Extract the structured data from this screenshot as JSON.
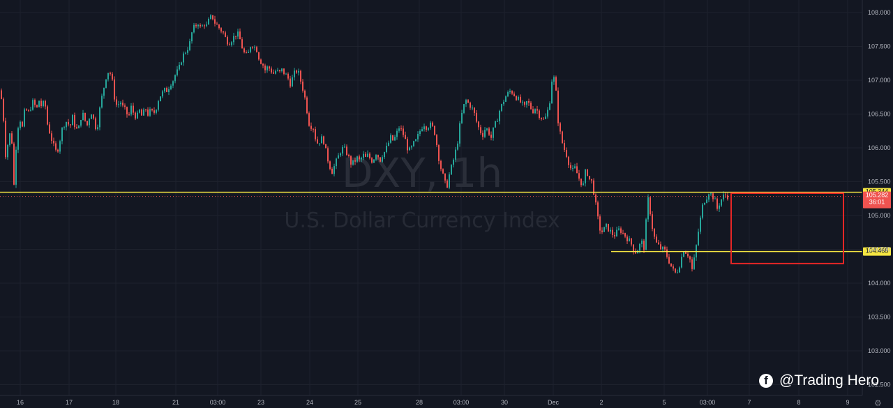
{
  "chart_data": {
    "type": "candlestick",
    "symbol": "DXY, 1h",
    "description": "U.S. Dollar Currency Index",
    "ylim": [
      102.75,
      108.2
    ],
    "y_ticks": [
      "108.000",
      "107.500",
      "107.000",
      "106.500",
      "106.000",
      "105.500",
      "105.000",
      "104.500",
      "104.000",
      "103.500",
      "103.000",
      "102.500"
    ],
    "x_ticks": [
      "16",
      "17",
      "18",
      "21",
      "03:00",
      "23",
      "24",
      "25",
      "28",
      "03:00",
      "30",
      "Dec",
      "2",
      "5",
      "03:00",
      "7",
      "8",
      "9"
    ],
    "close_path": [
      [
        0,
        106.85
      ],
      [
        4,
        106.6
      ],
      [
        8,
        105.9
      ],
      [
        12,
        106.1
      ],
      [
        16,
        106.3
      ],
      [
        20,
        105.45
      ],
      [
        24,
        106.2
      ],
      [
        28,
        106.45
      ],
      [
        32,
        106.3
      ],
      [
        36,
        106.6
      ],
      [
        40,
        106.5
      ],
      [
        44,
        106.6
      ],
      [
        48,
        106.7
      ],
      [
        52,
        106.55
      ],
      [
        56,
        106.7
      ],
      [
        60,
        106.6
      ],
      [
        64,
        106.7
      ],
      [
        68,
        106.35
      ],
      [
        72,
        106.2
      ],
      [
        76,
        106.05
      ],
      [
        80,
        105.95
      ],
      [
        84,
        106.0
      ],
      [
        88,
        106.25
      ],
      [
        92,
        106.35
      ],
      [
        96,
        106.4
      ],
      [
        100,
        106.3
      ],
      [
        104,
        106.45
      ],
      [
        108,
        106.3
      ],
      [
        112,
        106.25
      ],
      [
        116,
        106.45
      ],
      [
        120,
        106.5
      ],
      [
        124,
        106.3
      ],
      [
        128,
        106.45
      ],
      [
        132,
        106.55
      ],
      [
        136,
        106.3
      ],
      [
        140,
        106.35
      ],
      [
        144,
        106.65
      ],
      [
        148,
        106.85
      ],
      [
        152,
        107.05
      ],
      [
        156,
        107.15
      ],
      [
        160,
        107.05
      ],
      [
        164,
        106.75
      ],
      [
        168,
        106.6
      ],
      [
        172,
        106.7
      ],
      [
        176,
        106.6
      ],
      [
        180,
        106.55
      ],
      [
        184,
        106.45
      ],
      [
        188,
        106.6
      ],
      [
        192,
        106.5
      ],
      [
        196,
        106.45
      ],
      [
        200,
        106.55
      ],
      [
        204,
        106.45
      ],
      [
        208,
        106.6
      ],
      [
        212,
        106.5
      ],
      [
        216,
        106.55
      ],
      [
        220,
        106.5
      ],
      [
        224,
        106.6
      ],
      [
        228,
        106.75
      ],
      [
        232,
        106.8
      ],
      [
        236,
        106.85
      ],
      [
        240,
        106.85
      ],
      [
        244,
        106.95
      ],
      [
        248,
        107.0
      ],
      [
        252,
        107.1
      ],
      [
        256,
        107.15
      ],
      [
        260,
        107.3
      ],
      [
        264,
        107.4
      ],
      [
        268,
        107.45
      ],
      [
        272,
        107.55
      ],
      [
        276,
        107.75
      ],
      [
        280,
        107.8
      ],
      [
        284,
        107.85
      ],
      [
        288,
        107.75
      ],
      [
        292,
        107.85
      ],
      [
        296,
        107.8
      ],
      [
        300,
        107.9
      ],
      [
        304,
        107.95
      ],
      [
        308,
        107.85
      ],
      [
        312,
        107.8
      ],
      [
        316,
        107.75
      ],
      [
        320,
        107.7
      ],
      [
        324,
        107.6
      ],
      [
        328,
        107.55
      ],
      [
        332,
        107.6
      ],
      [
        336,
        107.65
      ],
      [
        340,
        107.7
      ],
      [
        344,
        107.6
      ],
      [
        348,
        107.45
      ],
      [
        352,
        107.35
      ],
      [
        356,
        107.4
      ],
      [
        360,
        107.55
      ],
      [
        364,
        107.5
      ],
      [
        368,
        107.45
      ],
      [
        372,
        107.3
      ],
      [
        376,
        107.25
      ],
      [
        380,
        107.15
      ],
      [
        384,
        107.2
      ],
      [
        388,
        107.15
      ],
      [
        392,
        107.1
      ],
      [
        396,
        107.15
      ],
      [
        400,
        107.1
      ],
      [
        404,
        107.15
      ],
      [
        408,
        107.1
      ],
      [
        412,
        107.05
      ],
      [
        416,
        106.95
      ],
      [
        420,
        107.05
      ],
      [
        424,
        107.15
      ],
      [
        428,
        107.1
      ],
      [
        432,
        106.95
      ],
      [
        436,
        106.8
      ],
      [
        440,
        106.55
      ],
      [
        444,
        106.3
      ],
      [
        448,
        106.35
      ],
      [
        452,
        106.15
      ],
      [
        456,
        106.05
      ],
      [
        460,
        106.15
      ],
      [
        464,
        106.1
      ],
      [
        468,
        105.9
      ],
      [
        472,
        105.75
      ],
      [
        476,
        105.65
      ],
      [
        480,
        105.75
      ],
      [
        484,
        105.85
      ],
      [
        488,
        105.95
      ],
      [
        492,
        106.0
      ],
      [
        496,
        105.95
      ],
      [
        500,
        105.85
      ],
      [
        504,
        105.75
      ],
      [
        508,
        105.8
      ],
      [
        512,
        105.85
      ],
      [
        516,
        105.8
      ],
      [
        520,
        105.9
      ],
      [
        524,
        105.85
      ],
      [
        528,
        105.9
      ],
      [
        532,
        105.8
      ],
      [
        536,
        105.85
      ],
      [
        540,
        105.95
      ],
      [
        544,
        105.8
      ],
      [
        548,
        105.9
      ],
      [
        552,
        105.95
      ],
      [
        556,
        106.05
      ],
      [
        560,
        106.15
      ],
      [
        564,
        106.1
      ],
      [
        568,
        106.2
      ],
      [
        572,
        106.3
      ],
      [
        576,
        106.25
      ],
      [
        580,
        106.15
      ],
      [
        584,
        106.0
      ],
      [
        588,
        105.95
      ],
      [
        592,
        106.05
      ],
      [
        596,
        106.1
      ],
      [
        600,
        106.2
      ],
      [
        604,
        106.3
      ],
      [
        608,
        106.35
      ],
      [
        612,
        106.3
      ],
      [
        616,
        106.35
      ],
      [
        620,
        106.3
      ],
      [
        624,
        106.2
      ],
      [
        628,
        105.9
      ],
      [
        632,
        105.7
      ],
      [
        636,
        105.55
      ],
      [
        640,
        105.4
      ],
      [
        644,
        105.6
      ],
      [
        648,
        105.75
      ],
      [
        652,
        105.9
      ],
      [
        656,
        106.1
      ],
      [
        660,
        106.4
      ],
      [
        664,
        106.6
      ],
      [
        668,
        106.7
      ],
      [
        672,
        106.65
      ],
      [
        676,
        106.6
      ],
      [
        680,
        106.5
      ],
      [
        684,
        106.35
      ],
      [
        688,
        106.25
      ],
      [
        692,
        106.2
      ],
      [
        696,
        106.3
      ],
      [
        700,
        106.25
      ],
      [
        704,
        106.15
      ],
      [
        708,
        106.3
      ],
      [
        712,
        106.4
      ],
      [
        716,
        106.55
      ],
      [
        720,
        106.65
      ],
      [
        724,
        106.75
      ],
      [
        728,
        106.8
      ],
      [
        732,
        106.85
      ],
      [
        736,
        106.8
      ],
      [
        740,
        106.75
      ],
      [
        744,
        106.7
      ],
      [
        748,
        106.65
      ],
      [
        752,
        106.6
      ],
      [
        756,
        106.7
      ],
      [
        760,
        106.6
      ],
      [
        764,
        106.55
      ],
      [
        768,
        106.6
      ],
      [
        772,
        106.5
      ],
      [
        776,
        106.45
      ],
      [
        780,
        106.4
      ],
      [
        784,
        106.5
      ],
      [
        788,
        106.7
      ],
      [
        792,
        107.1
      ],
      [
        796,
        106.95
      ],
      [
        800,
        106.4
      ],
      [
        804,
        106.15
      ],
      [
        808,
        106.0
      ],
      [
        812,
        105.9
      ],
      [
        816,
        105.75
      ],
      [
        820,
        105.65
      ],
      [
        824,
        105.7
      ],
      [
        828,
        105.6
      ],
      [
        832,
        105.5
      ],
      [
        836,
        105.45
      ],
      [
        840,
        105.7
      ],
      [
        844,
        105.55
      ],
      [
        848,
        105.5
      ],
      [
        852,
        105.3
      ],
      [
        856,
        105.0
      ],
      [
        860,
        104.8
      ],
      [
        864,
        104.75
      ],
      [
        868,
        104.85
      ],
      [
        872,
        104.8
      ],
      [
        876,
        104.75
      ],
      [
        880,
        104.7
      ],
      [
        884,
        104.75
      ],
      [
        888,
        104.8
      ],
      [
        892,
        104.75
      ],
      [
        896,
        104.7
      ],
      [
        900,
        104.65
      ],
      [
        904,
        104.6
      ],
      [
        908,
        104.5
      ],
      [
        912,
        104.45
      ],
      [
        916,
        104.55
      ],
      [
        920,
        104.6
      ],
      [
        924,
        104.5
      ],
      [
        928,
        105.3
      ],
      [
        932,
        105.05
      ],
      [
        936,
        104.75
      ],
      [
        940,
        104.6
      ],
      [
        944,
        104.55
      ],
      [
        948,
        104.5
      ],
      [
        952,
        104.5
      ],
      [
        956,
        104.4
      ],
      [
        960,
        104.3
      ],
      [
        964,
        104.2
      ],
      [
        968,
        104.15
      ],
      [
        972,
        104.2
      ],
      [
        976,
        104.35
      ],
      [
        980,
        104.5
      ],
      [
        984,
        104.45
      ],
      [
        988,
        104.4
      ],
      [
        992,
        104.2
      ],
      [
        996,
        104.4
      ],
      [
        1000,
        104.7
      ],
      [
        1004,
        104.95
      ],
      [
        1008,
        105.2
      ],
      [
        1012,
        105.25
      ],
      [
        1016,
        105.35
      ],
      [
        1020,
        105.3
      ],
      [
        1024,
        105.25
      ],
      [
        1028,
        105.1
      ],
      [
        1032,
        105.2
      ],
      [
        1036,
        105.28
      ],
      [
        1040,
        105.3
      ],
      [
        1044,
        105.28
      ]
    ],
    "last_price": "105.282",
    "countdown": "36:01",
    "annotations": {
      "resistance_line": {
        "value": 105.344,
        "label": "105.344",
        "color": "#f5e642"
      },
      "support_line": {
        "value": 104.468,
        "label": "104.468",
        "color": "#f5e642"
      },
      "target_box": {
        "y_top": 105.33,
        "y_bottom": 104.29,
        "color": "#e62626"
      }
    },
    "colors": {
      "up": "#26a69a",
      "down": "#ef5350",
      "background": "#131722",
      "grid": "#1e222d"
    }
  },
  "branding": {
    "handle": "@Trading Hero",
    "icon": "facebook-icon"
  },
  "settings_icon": "gear-icon"
}
